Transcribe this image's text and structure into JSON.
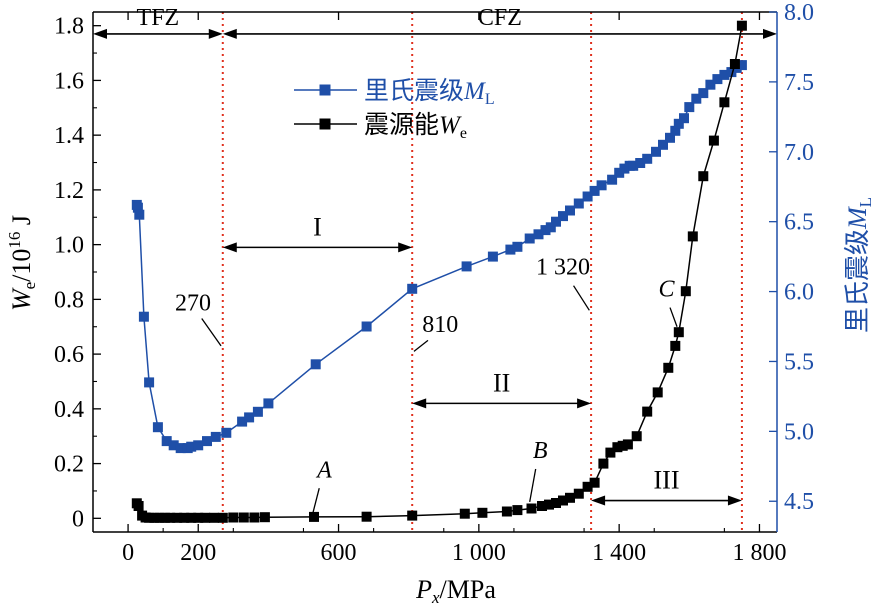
{
  "chart_data": {
    "type": "line",
    "xlabel": {
      "main": "P",
      "sub": "x",
      "unit": "/MPa"
    },
    "ylabel_left": {
      "main": "W",
      "sub": "e",
      "unit_base": "/10",
      "unit_exp": "16",
      "unit_tail": " J"
    },
    "ylabel_right": {
      "main": "里氏震级",
      "var": "M",
      "sub": "L"
    },
    "xlim": [
      -100,
      1850
    ],
    "ylim_left": [
      -0.05,
      1.85
    ],
    "ylim_right": [
      4.28,
      8.0
    ],
    "x_ticks": [
      {
        "value": 0,
        "label": "0"
      },
      {
        "value": 200,
        "label": "200"
      },
      {
        "value": 600,
        "label": "600"
      },
      {
        "value": 1000,
        "label": "1 000"
      },
      {
        "value": 1400,
        "label": "1 400"
      },
      {
        "value": 1800,
        "label": "1 800"
      }
    ],
    "y_left_ticks": [
      {
        "value": 0,
        "label": "0"
      },
      {
        "value": 0.2,
        "label": "0.2"
      },
      {
        "value": 0.4,
        "label": "0.4"
      },
      {
        "value": 0.6,
        "label": "0.6"
      },
      {
        "value": 0.8,
        "label": "0.8"
      },
      {
        "value": 1.0,
        "label": "1.0"
      },
      {
        "value": 1.2,
        "label": "1.2"
      },
      {
        "value": 1.4,
        "label": "1.4"
      },
      {
        "value": 1.6,
        "label": "1.6"
      },
      {
        "value": 1.8,
        "label": "1.8"
      }
    ],
    "y_right_ticks": [
      {
        "value": 4.5,
        "label": "4.5"
      },
      {
        "value": 5.0,
        "label": "5.0"
      },
      {
        "value": 5.5,
        "label": "5.5"
      },
      {
        "value": 6.0,
        "label": "6.0"
      },
      {
        "value": 6.5,
        "label": "6.5"
      },
      {
        "value": 7.0,
        "label": "7.0"
      },
      {
        "value": 7.5,
        "label": "7.5"
      },
      {
        "value": 8.0,
        "label": "8.0"
      }
    ],
    "legend": {
      "position": "top-left",
      "items": [
        {
          "prefix": "里氏震级",
          "var": "M",
          "sub": "L",
          "color": "#1f4fa8"
        },
        {
          "prefix": "震源能",
          "var": "W",
          "sub": "e",
          "color": "#000000"
        }
      ]
    },
    "series": [
      {
        "name": "里氏震级ML",
        "axis": "right",
        "color": "#1f4fa8",
        "x": [
          25,
          28,
          32,
          45,
          60,
          85,
          110,
          130,
          150,
          170,
          180,
          200,
          225,
          250,
          280,
          325,
          345,
          370,
          400,
          535,
          680,
          810,
          965,
          1040,
          1090,
          1110,
          1145,
          1170,
          1190,
          1205,
          1220,
          1240,
          1260,
          1285,
          1310,
          1330,
          1350,
          1380,
          1400,
          1415,
          1430,
          1440,
          1460,
          1480,
          1505,
          1525,
          1545,
          1560,
          1570,
          1585,
          1600,
          1620,
          1640,
          1660,
          1680,
          1700,
          1720,
          1735,
          1750
        ],
        "y": [
          6.62,
          6.6,
          6.55,
          5.82,
          5.35,
          5.03,
          4.93,
          4.9,
          4.88,
          4.88,
          4.89,
          4.9,
          4.93,
          4.96,
          4.99,
          5.07,
          5.1,
          5.14,
          5.2,
          5.48,
          5.75,
          6.02,
          6.18,
          6.25,
          6.3,
          6.32,
          6.38,
          6.41,
          6.44,
          6.46,
          6.5,
          6.54,
          6.58,
          6.63,
          6.68,
          6.72,
          6.76,
          6.8,
          6.85,
          6.88,
          6.9,
          6.9,
          6.92,
          6.95,
          7.0,
          7.05,
          7.1,
          7.15,
          7.2,
          7.24,
          7.32,
          7.38,
          7.42,
          7.48,
          7.52,
          7.55,
          7.57,
          7.6,
          7.62
        ]
      },
      {
        "name": "震源能We",
        "axis": "left",
        "color": "#000000",
        "x": [
          25,
          30,
          40,
          50,
          60,
          75,
          90,
          105,
          120,
          140,
          160,
          180,
          200,
          220,
          245,
          270,
          300,
          330,
          360,
          390,
          530,
          680,
          810,
          960,
          1010,
          1080,
          1110,
          1150,
          1180,
          1200,
          1220,
          1240,
          1260,
          1285,
          1310,
          1330,
          1355,
          1375,
          1395,
          1410,
          1425,
          1450,
          1480,
          1510,
          1540,
          1560,
          1570,
          1590,
          1610,
          1640,
          1670,
          1700,
          1730,
          1750
        ],
        "y": [
          0.055,
          0.045,
          0.01,
          0.003,
          0.002,
          0.002,
          0.002,
          0.002,
          0.002,
          0.002,
          0.002,
          0.002,
          0.002,
          0.002,
          0.002,
          0.002,
          0.003,
          0.003,
          0.003,
          0.004,
          0.005,
          0.006,
          0.01,
          0.017,
          0.02,
          0.025,
          0.03,
          0.036,
          0.045,
          0.05,
          0.056,
          0.065,
          0.075,
          0.09,
          0.115,
          0.13,
          0.2,
          0.24,
          0.26,
          0.265,
          0.27,
          0.3,
          0.39,
          0.46,
          0.55,
          0.63,
          0.68,
          0.83,
          1.03,
          1.25,
          1.38,
          1.52,
          1.66,
          1.8
        ]
      }
    ],
    "vlines": [
      270,
      810,
      1320,
      1750
    ],
    "vline_color": "#e0301e",
    "zone_labels": [
      {
        "text": "TFZ",
        "x_from": -100,
        "x_to": 270,
        "y": 1.77
      },
      {
        "text": "CFZ",
        "x_from": 270,
        "x_to": 1850,
        "y": 1.77
      }
    ],
    "ranges": [
      {
        "label": "I",
        "x_from": 270,
        "x_to": 810,
        "y": 0.99
      },
      {
        "label": "II",
        "x_from": 810,
        "x_to": 1320,
        "y": 0.42
      },
      {
        "label": "III",
        "x_from": 1320,
        "x_to": 1750,
        "y": 0.065
      }
    ],
    "annotations": [
      {
        "text": "270",
        "x": 185,
        "y": 0.76
      },
      {
        "text": "810",
        "x": 890,
        "y": 0.68
      },
      {
        "text": "1 320",
        "x": 1240,
        "y": 0.89
      },
      {
        "text": "A",
        "x": 560,
        "y": 0.15,
        "italic": true
      },
      {
        "text": "B",
        "x": 1175,
        "y": 0.22,
        "italic": true
      },
      {
        "text": "C",
        "x": 1535,
        "y": 0.81,
        "italic": true
      }
    ]
  }
}
